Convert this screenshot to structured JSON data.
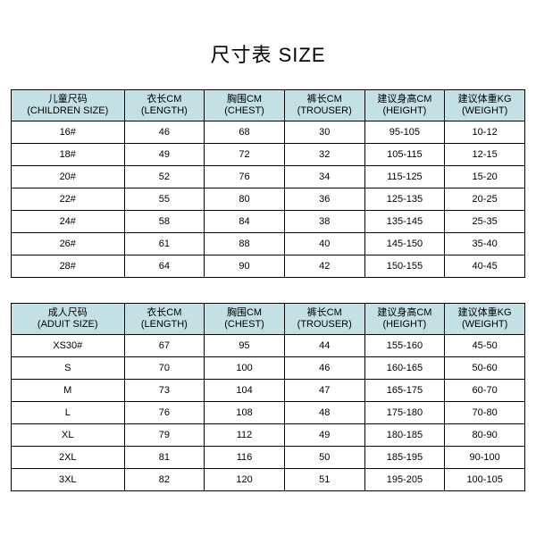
{
  "colors": {
    "header_bg": "#c3e0e5",
    "border": "#000000",
    "text": "#000000"
  },
  "title": "尺寸表 SIZE",
  "children": {
    "headers": [
      "儿童尺码\n(CHILDREN SIZE)",
      "衣长CM\n(LENGTH)",
      "胸围CM\n(CHEST)",
      "裤长CM\n(TROUSER)",
      "建议身高CM\n(HEIGHT)",
      "建议体重KG\n(WEIGHT)"
    ],
    "rows": [
      [
        "16#",
        "46",
        "68",
        "30",
        "95-105",
        "10-12"
      ],
      [
        "18#",
        "49",
        "72",
        "32",
        "105-115",
        "12-15"
      ],
      [
        "20#",
        "52",
        "76",
        "34",
        "115-125",
        "15-20"
      ],
      [
        "22#",
        "55",
        "80",
        "36",
        "125-135",
        "20-25"
      ],
      [
        "24#",
        "58",
        "84",
        "38",
        "135-145",
        "25-35"
      ],
      [
        "26#",
        "61",
        "88",
        "40",
        "145-150",
        "35-40"
      ],
      [
        "28#",
        "64",
        "90",
        "42",
        "150-155",
        "40-45"
      ]
    ]
  },
  "adult": {
    "headers": [
      "成人尺码\n(ADUIT SIZE)",
      "衣长CM\n(LENGTH)",
      "胸围CM\n(CHEST)",
      "裤长CM\n(TROUSER)",
      "建议身高CM\n(HEIGHT)",
      "建议体重KG\n(WEIGHT)"
    ],
    "rows": [
      [
        "XS30#",
        "67",
        "95",
        "44",
        "155-160",
        "45-50"
      ],
      [
        "S",
        "70",
        "100",
        "46",
        "160-165",
        "50-60"
      ],
      [
        "M",
        "73",
        "104",
        "47",
        "165-175",
        "60-70"
      ],
      [
        "L",
        "76",
        "108",
        "48",
        "175-180",
        "70-80"
      ],
      [
        "XL",
        "79",
        "112",
        "49",
        "180-185",
        "80-90"
      ],
      [
        "2XL",
        "81",
        "116",
        "50",
        "185-195",
        "90-100"
      ],
      [
        "3XL",
        "82",
        "120",
        "51",
        "195-205",
        "100-105"
      ]
    ]
  }
}
